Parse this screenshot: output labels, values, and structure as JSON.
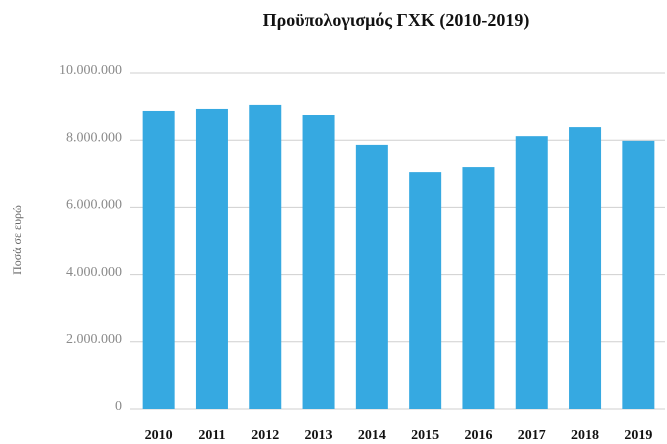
{
  "chart_data": {
    "type": "bar",
    "title": "Προϋπολογισμός ΓΧΚ (2010-2019)",
    "y_label": "Ποσά σε ευρώ",
    "categories": [
      "2010",
      "2011",
      "2012",
      "2013",
      "2014",
      "2015",
      "2016",
      "2017",
      "2018",
      "2019"
    ],
    "values": [
      8870000,
      8930000,
      9050000,
      8750000,
      7860000,
      7050000,
      7200000,
      8120000,
      8390000,
      7980000
    ],
    "color": "#36a9e1",
    "ylim": [
      0,
      10000000
    ],
    "yticks": [
      0,
      {
        "value": 2000000,
        "label": "2.000.000"
      },
      {
        "value": 4000000,
        "label": "4.000.000"
      },
      {
        "value": 6000000,
        "label": "6.000.000"
      },
      {
        "value": 8000000,
        "label": "8.000.000"
      },
      {
        "value": 10000000,
        "label": "10.000.000"
      }
    ],
    "grid": true
  }
}
